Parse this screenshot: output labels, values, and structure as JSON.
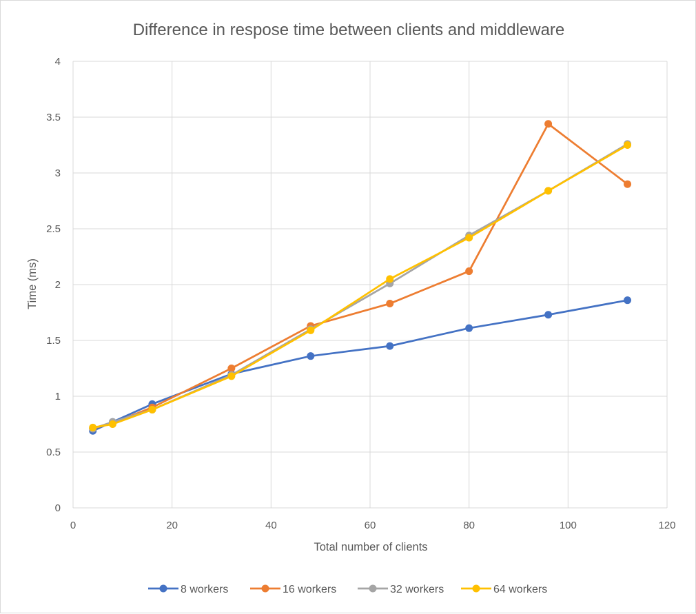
{
  "chart_data": {
    "type": "line",
    "title": "Difference in respose time between clients and middleware",
    "xlabel": "Total number of clients",
    "ylabel": "Time (ms)",
    "xlim": [
      0,
      120
    ],
    "ylim": [
      0,
      4
    ],
    "xticks": [
      0,
      20,
      40,
      60,
      80,
      100,
      120
    ],
    "yticks": [
      0,
      0.5,
      1,
      1.5,
      2,
      2.5,
      3,
      3.5,
      4
    ],
    "grid": true,
    "legend_position": "bottom",
    "x": [
      4,
      8,
      16,
      32,
      48,
      64,
      80,
      96,
      112
    ],
    "series": [
      {
        "name": "8 workers",
        "color": "#4472C4",
        "values": [
          0.69,
          0.77,
          0.93,
          1.2,
          1.36,
          1.45,
          1.61,
          1.73,
          1.86
        ]
      },
      {
        "name": "16 workers",
        "color": "#ED7D31",
        "values": [
          0.71,
          0.76,
          0.9,
          1.25,
          1.63,
          1.83,
          2.12,
          3.44,
          2.9
        ]
      },
      {
        "name": "32 workers",
        "color": "#A5A5A5",
        "values": [
          0.71,
          0.77,
          0.88,
          1.19,
          1.6,
          2.01,
          2.44,
          2.84,
          3.26
        ]
      },
      {
        "name": "64 workers",
        "color": "#FFC000",
        "values": [
          0.72,
          0.75,
          0.88,
          1.18,
          1.59,
          2.05,
          2.42,
          2.84,
          3.25
        ]
      }
    ]
  }
}
